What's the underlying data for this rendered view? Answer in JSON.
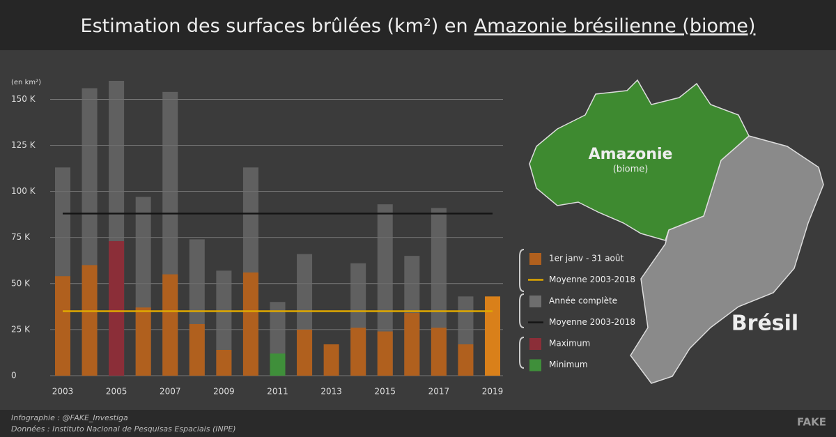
{
  "chart_data": {
    "type": "bar",
    "title": "Estimation des surfaces brûlées (km²) en",
    "title_emphasis": "Amazonie brésilienne (biome)",
    "y_unit": "(en km²)",
    "categories": [
      "2003",
      null,
      "2005",
      null,
      "2007",
      null,
      "2009",
      null,
      "2011",
      null,
      "2013",
      null,
      "2015",
      null,
      "2017",
      null,
      "2019"
    ],
    "series": [
      {
        "name": "Année complète",
        "color": "#6e6e6e",
        "values": [
          113000,
          156000,
          160000,
          97000,
          154000,
          74000,
          57000,
          113000,
          40000,
          66000,
          null,
          61000,
          93000,
          65000,
          91000,
          43000,
          null
        ]
      },
      {
        "name": "1er janv - 31 août",
        "color": "#b0601e",
        "colors": [
          "#b0601e",
          "#b0601e",
          "#8b2e38",
          "#b0601e",
          "#b0601e",
          "#b0601e",
          "#b0601e",
          "#b0601e",
          "#3f8f3a",
          "#b0601e",
          "#b0601e",
          "#b0601e",
          "#b0601e",
          "#b0601e",
          "#b0601e",
          "#b0601e",
          "#d9801a"
        ],
        "values": [
          54000,
          60000,
          73000,
          37000,
          55000,
          28000,
          14000,
          56000,
          12000,
          25000,
          17000,
          26000,
          24000,
          34000,
          26000,
          17000,
          43000
        ]
      }
    ],
    "averages": [
      {
        "name": "Moyenne 2003-2018",
        "color": "#e0a800",
        "value": 35000
      },
      {
        "name": "Moyenne 2003-2018",
        "color": "#151515",
        "value": 88000
      }
    ],
    "highlights": [
      {
        "name": "Maximum",
        "color": "#8b2e38"
      },
      {
        "name": "Minimum",
        "color": "#3f8f3a"
      }
    ],
    "ylim": [
      0,
      160000
    ],
    "yticks": [
      0,
      {
        "value": 25000,
        "label": "25 K"
      },
      {
        "value": 50000,
        "label": "50 K"
      },
      {
        "value": 75000,
        "label": "75 K"
      },
      {
        "value": 100000,
        "label": "100 K"
      },
      {
        "value": 125000,
        "label": "125 K"
      },
      {
        "value": 150000,
        "label": "150 K"
      }
    ],
    "grid": true
  },
  "map": {
    "region": "Amazonie",
    "region_note": "(biome)",
    "country": "Brésil"
  },
  "footer": {
    "credit": "Infographie : @FAKE_Investiga",
    "source": "Données : Instituto Nacional de Pesquisas Espaciais (INPE)",
    "logo": "FAKE"
  }
}
